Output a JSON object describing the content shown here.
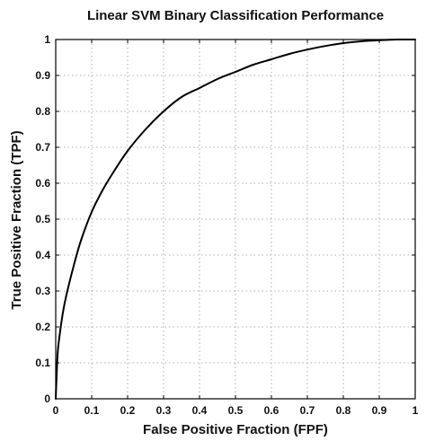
{
  "chart_data": {
    "type": "line",
    "title": "Linear SVM Binary Classification Performance",
    "xlabel": "False Positive Fraction (FPF)",
    "ylabel": "True Positive Fraction (TPF)",
    "xlim": [
      0,
      1
    ],
    "ylim": [
      0,
      1
    ],
    "xticks": [
      "0",
      "0.1",
      "0.2",
      "0.3",
      "0.4",
      "0.5",
      "0.6",
      "0.7",
      "0.8",
      "0.9",
      "1"
    ],
    "yticks": [
      "0",
      "0.1",
      "0.2",
      "0.3",
      "0.4",
      "0.5",
      "0.6",
      "0.7",
      "0.8",
      "0.9",
      "1"
    ],
    "grid": true,
    "legend": "none",
    "line_color": "#000000",
    "series": [
      {
        "x": [
          0,
          0.005,
          0.01,
          0.02,
          0.03,
          0.05,
          0.07,
          0.1,
          0.13,
          0.16,
          0.2,
          0.25,
          0.3,
          0.35,
          0.4,
          0.45,
          0.5,
          0.55,
          0.6,
          0.65,
          0.7,
          0.75,
          0.8,
          0.85,
          0.9,
          0.95,
          1.0
        ],
        "y": [
          0,
          0.12,
          0.17,
          0.24,
          0.29,
          0.37,
          0.44,
          0.52,
          0.58,
          0.63,
          0.69,
          0.75,
          0.8,
          0.84,
          0.865,
          0.89,
          0.91,
          0.93,
          0.945,
          0.96,
          0.972,
          0.982,
          0.99,
          0.995,
          0.998,
          1.0,
          1.0
        ]
      }
    ]
  }
}
